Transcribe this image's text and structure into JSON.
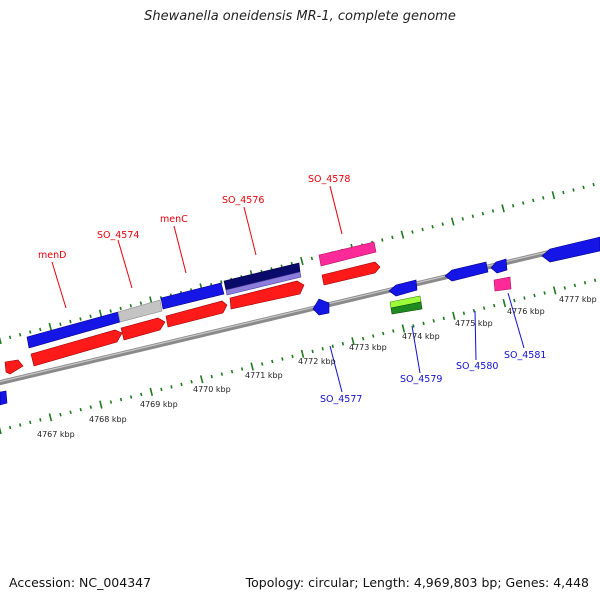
{
  "title": "Shewanella oneidensis MR-1, complete genome",
  "footer": {
    "accession": "Accession: NC_004347",
    "summary": "Topology: circular; Length: 4,969,803 bp; Genes: 4,448"
  },
  "colors": {
    "forward_gene": "#ff1a1a",
    "reverse_gene": "#1515e6",
    "forward_label": "#e8000b",
    "reverse_label": "#1010d0",
    "backbone": "#8a8a8a",
    "tick": "#1f7a1f"
  },
  "tick_labels": [
    "4767 kbp",
    "4768 kbp",
    "4769 kbp",
    "4770 kbp",
    "4771 kbp",
    "4772 kbp",
    "4773 kbp",
    "4774 kbp",
    "4775 kbp",
    "4776 kbp",
    "4777 kbp"
  ],
  "gene_labels_forward": [
    "menD",
    "SO_4574",
    "menC",
    "SO_4576",
    "SO_4578"
  ],
  "gene_labels_reverse": [
    "SO_4577",
    "SO_4579",
    "SO_4580",
    "SO_4581"
  ]
}
